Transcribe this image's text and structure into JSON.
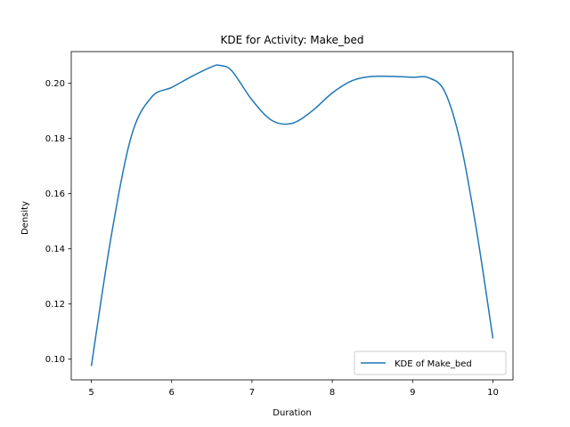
{
  "chart_data": {
    "type": "line",
    "title": "KDE for Activity: Make_bed",
    "xlabel": "Duration",
    "ylabel": "Density",
    "xlim": [
      4.75,
      10.25
    ],
    "ylim": [
      0.0925,
      0.2115
    ],
    "xticks": [
      5,
      6,
      7,
      8,
      9,
      10
    ],
    "yticks": [
      0.1,
      0.12,
      0.14,
      0.16,
      0.18,
      0.2
    ],
    "ytick_labels": [
      "0.10",
      "0.12",
      "0.14",
      "0.16",
      "0.18",
      "0.20"
    ],
    "grid": false,
    "legend_position": "lower-right",
    "series": [
      {
        "name": "KDE of Make_bed",
        "color": "#1f77b4",
        "x": [
          5.0,
          5.25,
          5.5,
          5.75,
          6.0,
          6.25,
          6.5,
          6.6,
          6.75,
          7.0,
          7.25,
          7.5,
          7.75,
          8.0,
          8.25,
          8.5,
          8.75,
          9.0,
          9.2,
          9.4,
          9.6,
          9.8,
          10.0
        ],
        "y": [
          0.0975,
          0.145,
          0.181,
          0.195,
          0.1985,
          0.2025,
          0.206,
          0.2065,
          0.2045,
          0.194,
          0.1865,
          0.1855,
          0.19,
          0.1965,
          0.201,
          0.2025,
          0.2025,
          0.2022,
          0.202,
          0.197,
          0.178,
          0.146,
          0.1075
        ]
      }
    ]
  }
}
